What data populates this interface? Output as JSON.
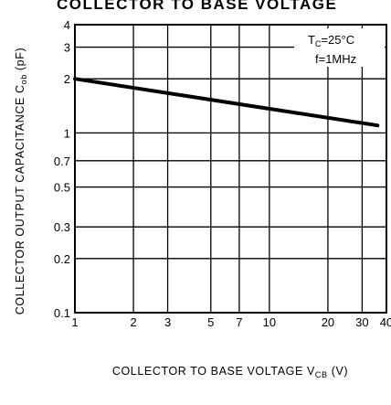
{
  "chart_data": {
    "type": "line",
    "title": "COLLECTOR TO BASE VOLTAGE",
    "xlabel": "COLLECTOR TO BASE VOLTAGE",
    "xlabel_symbol": "V",
    "xlabel_symbol_sub": "CB",
    "xlabel_unit": "(V)",
    "ylabel": "COLLECTOR OUTPUT CAPACITANCE",
    "ylabel_symbol": "C",
    "ylabel_symbol_sub": "ob",
    "ylabel_unit": "(pF)",
    "xscale": "log",
    "yscale": "log",
    "xlim": [
      1,
      40
    ],
    "ylim": [
      0.1,
      4
    ],
    "x_ticks": [
      1,
      2,
      3,
      5,
      7,
      10,
      20,
      30,
      40
    ],
    "x_tick_labels": [
      "1",
      "2",
      "3",
      "5",
      "7",
      "10",
      "20",
      "30",
      "40"
    ],
    "y_ticks": [
      0.1,
      0.2,
      0.3,
      0.5,
      0.7,
      1,
      2,
      3,
      4
    ],
    "y_tick_labels": [
      "0.1",
      "0.2",
      "0.3",
      "0.5",
      "0.7",
      "1",
      "2",
      "3",
      "4"
    ],
    "grid": true,
    "annotations": [
      {
        "symbol": "T",
        "sub": "C",
        "text": "=25°C"
      },
      {
        "text": "f=1MHz"
      }
    ],
    "series": [
      {
        "x": [
          1,
          36
        ],
        "y": [
          2.0,
          1.1
        ]
      }
    ]
  }
}
